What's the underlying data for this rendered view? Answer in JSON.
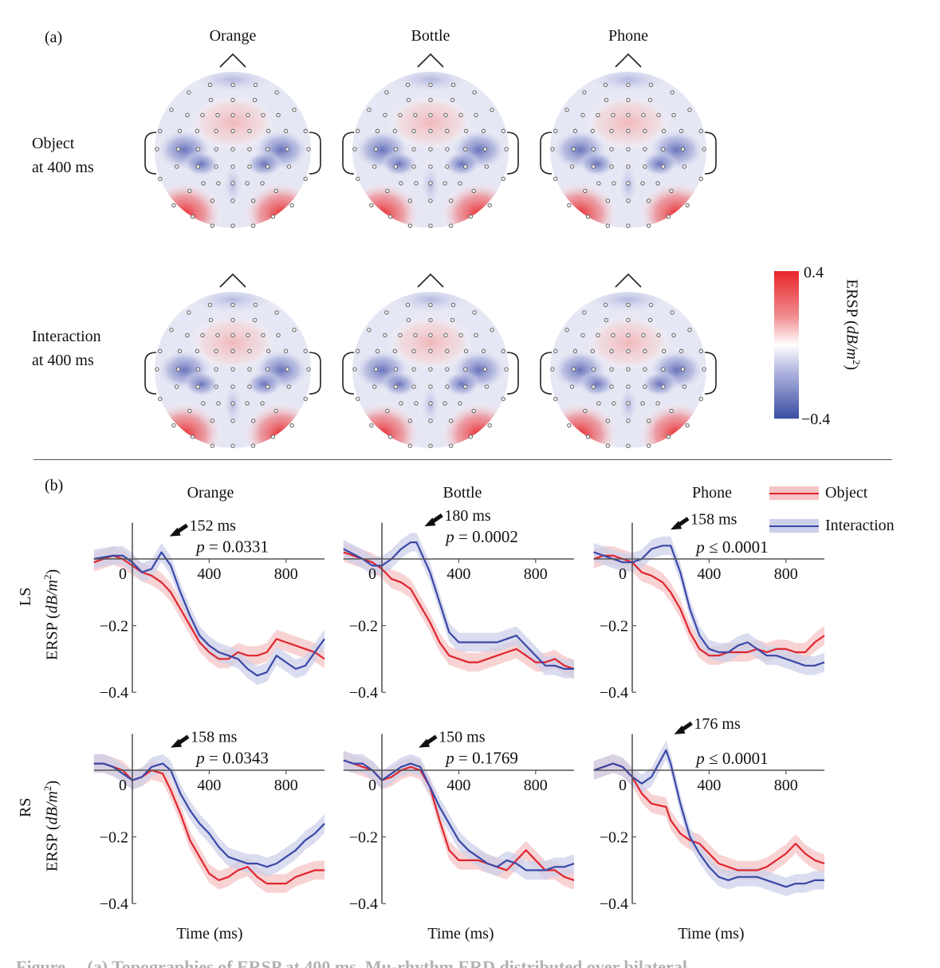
{
  "panel_a": {
    "label": "(a)",
    "columns": [
      "Orange",
      "Bottle",
      "Phone"
    ],
    "rows": [
      {
        "line1": "Object",
        "line2": "at 400 ms"
      },
      {
        "line1": "Interaction",
        "line2": "at 400 ms"
      }
    ],
    "colorbar": {
      "max_label": "0.4",
      "min_label": "−0.4",
      "title": "ERSP (dB/m²)",
      "title_main": "ERSP (",
      "title_italic": "dB/m",
      "title_sup": "2",
      "title_close": ")",
      "colors": {
        "high": "#e8262b",
        "mid": "#ffffff",
        "low": "#3a4fa5"
      }
    }
  },
  "panel_b": {
    "label": "(b)",
    "columns": [
      "Orange",
      "Bottle",
      "Phone"
    ],
    "rows": [
      {
        "name": "LS",
        "ylabel_main": "ERSP (",
        "ylabel_italic": "dB/m",
        "ylabel_sup": "2",
        "ylabel_close": ")"
      },
      {
        "name": "RS",
        "ylabel_main": "ERSP (",
        "ylabel_italic": "dB/m",
        "ylabel_sup": "2",
        "ylabel_close": ")"
      }
    ],
    "xlabel": "Time (ms)",
    "legend": [
      {
        "label": "Object",
        "color": "#e0262e",
        "band": "#f6c4c6"
      },
      {
        "label": "Interaction",
        "color": "#3a48a8",
        "band": "#cdd0ea"
      }
    ]
  },
  "caption_partial": "Figure ... (a) Topographies of ERSP at 400 ms. Mu-rhythm ERD distributed over bilateral ...",
  "chart_data": [
    {
      "type": "line",
      "title": "Orange",
      "row": "LS",
      "xlabel": "Time (ms)",
      "ylabel": "ERSP (dB/m2)",
      "xlim": [
        -200,
        1000
      ],
      "ylim": [
        -0.4,
        0.08
      ],
      "xticks": [
        0,
        400,
        800
      ],
      "yticks": [
        -0.2,
        -0.4
      ],
      "x": [
        -200,
        -100,
        -50,
        0,
        50,
        100,
        152,
        200,
        250,
        300,
        350,
        400,
        450,
        500,
        550,
        600,
        650,
        700,
        750,
        800,
        850,
        900,
        950,
        1000
      ],
      "series": [
        {
          "name": "Object",
          "values": [
            -0.01,
            0.01,
            0.0,
            -0.02,
            -0.04,
            -0.05,
            -0.07,
            -0.1,
            -0.15,
            -0.2,
            -0.25,
            -0.28,
            -0.3,
            -0.3,
            -0.28,
            -0.29,
            -0.29,
            -0.28,
            -0.24,
            -0.25,
            -0.26,
            -0.27,
            -0.28,
            -0.3
          ]
        },
        {
          "name": "Interaction",
          "values": [
            0.0,
            0.01,
            0.01,
            -0.01,
            -0.04,
            -0.03,
            0.02,
            -0.02,
            -0.1,
            -0.17,
            -0.23,
            -0.26,
            -0.28,
            -0.29,
            -0.3,
            -0.33,
            -0.35,
            -0.34,
            -0.29,
            -0.31,
            -0.33,
            -0.32,
            -0.28,
            -0.24
          ]
        }
      ],
      "annotations": [
        "152 ms",
        "p = 0.0331"
      ]
    },
    {
      "type": "line",
      "title": "Bottle",
      "row": "LS",
      "xlabel": "Time (ms)",
      "ylabel": "ERSP (dB/m2)",
      "xlim": [
        -200,
        1000
      ],
      "ylim": [
        -0.4,
        0.08
      ],
      "xticks": [
        0,
        400,
        800
      ],
      "yticks": [
        -0.2,
        -0.4
      ],
      "x": [
        -200,
        -100,
        -50,
        0,
        50,
        100,
        150,
        180,
        250,
        300,
        350,
        400,
        450,
        500,
        550,
        600,
        650,
        700,
        750,
        800,
        850,
        900,
        950,
        1000
      ],
      "series": [
        {
          "name": "Object",
          "values": [
            0.02,
            0.0,
            -0.01,
            -0.03,
            -0.06,
            -0.07,
            -0.09,
            -0.12,
            -0.19,
            -0.25,
            -0.29,
            -0.3,
            -0.31,
            -0.31,
            -0.3,
            -0.29,
            -0.28,
            -0.27,
            -0.29,
            -0.31,
            -0.31,
            -0.3,
            -0.32,
            -0.33
          ]
        },
        {
          "name": "Interaction",
          "values": [
            0.03,
            0.0,
            -0.02,
            -0.02,
            0.0,
            0.03,
            0.05,
            0.05,
            -0.04,
            -0.13,
            -0.22,
            -0.25,
            -0.25,
            -0.25,
            -0.25,
            -0.25,
            -0.24,
            -0.23,
            -0.26,
            -0.29,
            -0.32,
            -0.32,
            -0.33,
            -0.33
          ]
        }
      ],
      "annotations": [
        "180 ms",
        "p = 0.0002"
      ]
    },
    {
      "type": "line",
      "title": "Phone",
      "row": "LS",
      "xlabel": "Time (ms)",
      "ylabel": "ERSP (dB/m2)",
      "xlim": [
        -200,
        1000
      ],
      "ylim": [
        -0.4,
        0.08
      ],
      "xticks": [
        0,
        400,
        800
      ],
      "yticks": [
        -0.2,
        -0.4
      ],
      "x": [
        -200,
        -150,
        -100,
        -50,
        0,
        50,
        100,
        158,
        200,
        250,
        300,
        350,
        400,
        450,
        500,
        550,
        600,
        650,
        700,
        750,
        800,
        850,
        900,
        950,
        1000
      ],
      "series": [
        {
          "name": "Object",
          "values": [
            0.0,
            0.01,
            0.01,
            0.0,
            -0.01,
            -0.04,
            -0.05,
            -0.07,
            -0.1,
            -0.15,
            -0.22,
            -0.27,
            -0.29,
            -0.29,
            -0.28,
            -0.28,
            -0.28,
            -0.27,
            -0.28,
            -0.27,
            -0.27,
            -0.28,
            -0.28,
            -0.25,
            -0.23
          ]
        },
        {
          "name": "Interaction",
          "values": [
            0.02,
            0.01,
            0.0,
            -0.01,
            -0.01,
            0.0,
            0.03,
            0.04,
            0.04,
            -0.04,
            -0.15,
            -0.23,
            -0.27,
            -0.28,
            -0.28,
            -0.26,
            -0.25,
            -0.27,
            -0.29,
            -0.29,
            -0.3,
            -0.31,
            -0.32,
            -0.32,
            -0.31
          ]
        }
      ],
      "annotations": [
        "158 ms",
        "p ≤ 0.0001"
      ]
    },
    {
      "type": "line",
      "title": "Orange",
      "row": "RS",
      "xlabel": "Time (ms)",
      "ylabel": "ERSP (dB/m2)",
      "xlim": [
        -200,
        1000
      ],
      "ylim": [
        -0.4,
        0.08
      ],
      "xticks": [
        0,
        400,
        800
      ],
      "yticks": [
        -0.2,
        -0.4
      ],
      "x": [
        -200,
        -150,
        -100,
        -50,
        0,
        50,
        100,
        158,
        200,
        250,
        300,
        350,
        400,
        450,
        500,
        550,
        600,
        650,
        700,
        750,
        800,
        850,
        900,
        950,
        1000
      ],
      "series": [
        {
          "name": "Object",
          "values": [
            0.02,
            0.02,
            0.01,
            0.0,
            -0.03,
            -0.02,
            0.0,
            -0.01,
            -0.06,
            -0.13,
            -0.21,
            -0.26,
            -0.31,
            -0.33,
            -0.32,
            -0.3,
            -0.29,
            -0.32,
            -0.34,
            -0.34,
            -0.34,
            -0.32,
            -0.31,
            -0.3,
            -0.3
          ]
        },
        {
          "name": "Interaction",
          "values": [
            0.02,
            0.02,
            0.01,
            -0.01,
            -0.03,
            -0.02,
            0.01,
            0.02,
            0.0,
            -0.07,
            -0.12,
            -0.16,
            -0.19,
            -0.23,
            -0.26,
            -0.27,
            -0.28,
            -0.28,
            -0.29,
            -0.28,
            -0.26,
            -0.24,
            -0.21,
            -0.19,
            -0.16
          ]
        }
      ],
      "annotations": [
        "158 ms",
        "p = 0.0343"
      ]
    },
    {
      "type": "line",
      "title": "Bottle",
      "row": "RS",
      "xlabel": "Time (ms)",
      "ylabel": "ERSP (dB/m2)",
      "xlim": [
        -200,
        1000
      ],
      "ylim": [
        -0.4,
        0.08
      ],
      "xticks": [
        0,
        400,
        800
      ],
      "yticks": [
        -0.2,
        -0.4
      ],
      "x": [
        -200,
        -150,
        -100,
        -50,
        0,
        50,
        100,
        150,
        200,
        250,
        300,
        350,
        400,
        450,
        500,
        550,
        600,
        650,
        700,
        750,
        800,
        850,
        900,
        950,
        1000
      ],
      "series": [
        {
          "name": "Object",
          "values": [
            0.03,
            0.02,
            0.01,
            0.0,
            -0.03,
            -0.02,
            0.0,
            0.01,
            0.0,
            -0.05,
            -0.15,
            -0.24,
            -0.27,
            -0.27,
            -0.27,
            -0.28,
            -0.29,
            -0.3,
            -0.27,
            -0.24,
            -0.27,
            -0.3,
            -0.3,
            -0.32,
            -0.33
          ]
        },
        {
          "name": "Interaction",
          "values": [
            0.03,
            0.02,
            0.02,
            0.0,
            -0.03,
            -0.01,
            0.01,
            0.02,
            0.01,
            -0.05,
            -0.11,
            -0.16,
            -0.21,
            -0.24,
            -0.26,
            -0.28,
            -0.29,
            -0.27,
            -0.28,
            -0.3,
            -0.3,
            -0.3,
            -0.29,
            -0.29,
            -0.28
          ]
        }
      ],
      "annotations": [
        "150 ms",
        "p = 0.1769"
      ]
    },
    {
      "type": "line",
      "title": "Phone",
      "row": "RS",
      "xlabel": "Time (ms)",
      "ylabel": "ERSP (dB/m2)",
      "xlim": [
        -200,
        1000
      ],
      "ylim": [
        -0.4,
        0.08
      ],
      "xticks": [
        0,
        400,
        800
      ],
      "yticks": [
        -0.2,
        -0.4
      ],
      "x": [
        -200,
        -150,
        -100,
        -50,
        0,
        50,
        100,
        176,
        200,
        250,
        300,
        350,
        400,
        450,
        500,
        550,
        600,
        650,
        700,
        750,
        800,
        850,
        900,
        950,
        1000
      ],
      "series": [
        {
          "name": "Object",
          "values": [
            0.0,
            0.01,
            0.02,
            0.01,
            -0.02,
            -0.07,
            -0.1,
            -0.11,
            -0.15,
            -0.19,
            -0.21,
            -0.22,
            -0.25,
            -0.28,
            -0.29,
            -0.3,
            -0.3,
            -0.3,
            -0.29,
            -0.27,
            -0.25,
            -0.22,
            -0.25,
            -0.27,
            -0.28
          ]
        },
        {
          "name": "Interaction",
          "values": [
            0.0,
            0.01,
            0.02,
            0.01,
            -0.02,
            -0.04,
            -0.02,
            0.06,
            0.02,
            -0.1,
            -0.2,
            -0.25,
            -0.29,
            -0.32,
            -0.33,
            -0.32,
            -0.32,
            -0.32,
            -0.33,
            -0.34,
            -0.35,
            -0.34,
            -0.34,
            -0.33,
            -0.33
          ]
        }
      ],
      "annotations": [
        "176 ms",
        "p ≤ 0.0001"
      ]
    }
  ]
}
